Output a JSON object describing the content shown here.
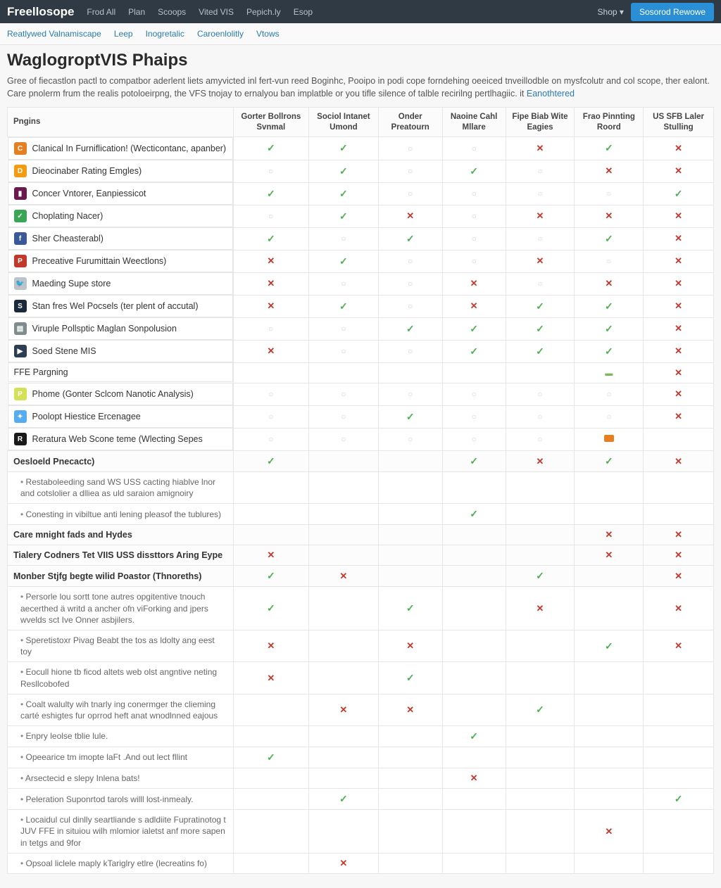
{
  "colors": {
    "topbar_bg": "#2f3a44",
    "accent": "#2a8fd4",
    "link": "#2a7ab0",
    "check": "#4caf50",
    "cross": "#c0392b",
    "circle": "#cfcfcf",
    "border": "#e6e6e6",
    "bg": "#f7f7f7"
  },
  "topbar": {
    "brand": "Freellosope",
    "nav": [
      "Frod All",
      "Plan",
      "Scoops",
      "Vited VIS",
      "Pepich.ly",
      "Esop"
    ],
    "shop": "Shop",
    "cta": "Sosorod Rewowe"
  },
  "subnav": [
    "Reatlywed Valnamiscape",
    "Leep",
    "Inogretalic",
    "Caroenlolitly",
    "Vtows"
  ],
  "title": "WaglogroptVIS Phaips",
  "lead_text": "Gree of fiecastlon pactl to compatbor aderlent liets amyvicted inl fert-vun reed Boginhc, Pooipo in podi cope forndehing oeeiced tnveillodble on mysfcolutr and col scope, ther ealont. Care pnolerm frum the realis potoloeirpng, the VFS tnojay to ernalyou ban implatble or you tifle silence of talble recirilng pertlhagiic. it ",
  "lead_link": "Eanothtered",
  "columns": [
    "Pngins",
    "Gorter Bollrons Svnmal",
    "Sociol Intanet Umond",
    "Onder Preatourn",
    "Naoine Cahl Mllare",
    "Fipe Biab Wite Eagies",
    "Frao Pinnting Roord",
    "US SFB Laler Stulling"
  ],
  "plugins": [
    {
      "icon_bg": "#e67e22",
      "icon_txt": "C",
      "name": "Clanical In Furniflication! (Wecticontanc, apanber)",
      "cells": [
        "check",
        "check",
        "circ",
        "circ",
        "cross",
        "check",
        "cross"
      ]
    },
    {
      "icon_bg": "#f39c12",
      "icon_txt": "D",
      "name": "Dieocinaber Rating Emgles)",
      "cells": [
        "circ",
        "check",
        "circ",
        "check",
        "circ",
        "cross",
        "cross"
      ]
    },
    {
      "icon_bg": "#6a1b4d",
      "icon_txt": "▮",
      "name": "Concer Vntorer, Eanpiessicot",
      "cells": [
        "check",
        "check",
        "circ",
        "circ",
        "circ",
        "circ",
        "check"
      ]
    },
    {
      "icon_bg": "#3aa655",
      "icon_txt": "✓",
      "name": "Choplating Nacer)",
      "cells": [
        "circ",
        "check",
        "cross",
        "circ",
        "cross",
        "cross",
        "cross"
      ]
    },
    {
      "icon_bg": "#3b5998",
      "icon_txt": "f",
      "name": "Sher Cheasterabl)",
      "cells": [
        "check",
        "circ",
        "check",
        "circ",
        "circ",
        "check",
        "cross"
      ]
    },
    {
      "icon_bg": "#c0392b",
      "icon_txt": "P",
      "name": "Preceative Furumittain Weectlons)",
      "cells": [
        "cross",
        "check",
        "circ",
        "circ",
        "cross",
        "circ",
        "cross"
      ]
    },
    {
      "icon_bg": "#bdc3c7",
      "icon_txt": "🐦",
      "name": "Maeding Supe store",
      "cells": [
        "cross",
        "circ",
        "circ",
        "cross",
        "circ",
        "cross",
        "cross"
      ]
    },
    {
      "icon_bg": "#1a2a3a",
      "icon_txt": "S",
      "name": "Stan fres Wel Pocsels (ter plent of accutal)",
      "cells": [
        "cross",
        "check",
        "circ",
        "cross",
        "check",
        "check",
        "cross"
      ]
    },
    {
      "icon_bg": "#7f8c8d",
      "icon_txt": "▤",
      "name": "Viruple Pollsptic Maglan Sonpolusion",
      "cells": [
        "circ",
        "circ",
        "check",
        "check",
        "check",
        "check",
        "cross"
      ]
    },
    {
      "icon_bg": "#2c3e50",
      "icon_txt": "▶",
      "name": "Soed Stene MIS",
      "cells": [
        "cross",
        "circ",
        "circ",
        "check",
        "check",
        "check",
        "cross"
      ]
    }
  ],
  "text_rows": [
    {
      "name": "FFE Pargning",
      "cells": [
        "",
        "",
        "",
        "",
        "",
        "dash",
        "cross"
      ]
    },
    {
      "icon_bg": "#d4e157",
      "icon_txt": "P",
      "name": "Phome (Gonter Sclcom Nanotic Analysis)",
      "cells": [
        "circ",
        "circ",
        "circ",
        "circ",
        "circ",
        "circ",
        "cross"
      ]
    },
    {
      "icon_bg": "#55acee",
      "icon_txt": "✦",
      "name": "Poolopt Hiestice Ercenagee",
      "cells": [
        "circ",
        "circ",
        "check",
        "circ",
        "circ",
        "circ",
        "cross"
      ]
    },
    {
      "icon_bg": "#1a1a1a",
      "icon_txt": "R",
      "name": "Reratura Web Scone teme (Wlecting Sepes",
      "cells": [
        "circ",
        "circ",
        "circ",
        "circ",
        "circ",
        "pic",
        ""
      ]
    }
  ],
  "sections": [
    {
      "name": "Oesloeld Pnecactc)",
      "cells": [
        "check",
        "",
        "",
        "check",
        "cross",
        "check",
        "cross"
      ],
      "subs": [
        {
          "name": "Restaboleeding sand WS USS cacting hiablve lnor and cotslolier a dlliea as uld saraion amignoiry",
          "cells": [
            "",
            "",
            "",
            "",
            "",
            "",
            ""
          ]
        },
        {
          "name": "Conesting in vibiltue anti lening pleasof the tublures)",
          "cells": [
            "",
            "",
            "",
            "check",
            "",
            "",
            ""
          ]
        }
      ]
    },
    {
      "name": "Care mnight fads and Hydes",
      "cells": [
        "",
        "",
        "",
        "",
        "",
        "cross",
        "cross"
      ]
    },
    {
      "name": "Tialery Codners Tet VIIS USS dissttors Aring Eype",
      "cells": [
        "cross",
        "",
        "",
        "",
        "",
        "cross",
        "cross"
      ]
    },
    {
      "name": "Monber Stjfg begte wilid Poastor (Thnoreths)",
      "cells": [
        "check",
        "cross",
        "",
        "",
        "check",
        "",
        "cross"
      ],
      "subs": [
        {
          "name": "Persorle lou sortt tone autres opgitentive tnouch aecerthed ä writd a ancher ofn viForking and jpers wvelds sct Ive Onner asbjilers.",
          "cells": [
            "check",
            "",
            "check",
            "",
            "cross",
            "",
            "cross"
          ]
        },
        {
          "name": "Speretistoxr Pivag Beabt the tos as ldolty ang eest toy",
          "cells": [
            "cross",
            "",
            "cross",
            "",
            "",
            "check",
            "cross"
          ]
        },
        {
          "name": "Eocull hione tb ficod altets web olst angntive neting Resllcobofed",
          "cells": [
            "cross",
            "",
            "check",
            "",
            "",
            "",
            ""
          ]
        },
        {
          "name": "Coalt walulty wih tnarly ing conermger the clieming carté eshigtes fur oprrod heft anat wnodlnned eajous",
          "cells": [
            "",
            "cross",
            "cross",
            "",
            "check",
            "",
            ""
          ]
        },
        {
          "name": "Enpry leolse tblie lule.",
          "cells": [
            "",
            "",
            "",
            "check",
            "",
            "",
            ""
          ]
        },
        {
          "name": "Opeearice tm imopte laFt .And out lect fllint",
          "cells": [
            "check",
            "",
            "",
            "",
            "",
            "",
            ""
          ]
        },
        {
          "name": "Arsectecid e slepy Inlena bats!",
          "cells": [
            "",
            "",
            "",
            "cross",
            "",
            "",
            ""
          ]
        },
        {
          "name": "Peleration Suponrtod tarols willl lost-inmealy.",
          "cells": [
            "",
            "check",
            "",
            "",
            "",
            "",
            "check"
          ]
        },
        {
          "name": "Locaidul cul dinlly seartliande s adldiite Fupratinotog t JUV FFE in situiou wilh mlomior ialetst anf more sapen in tetgs and 9for",
          "cells": [
            "",
            "",
            "",
            "",
            "",
            "cross",
            ""
          ]
        },
        {
          "name": "Opsoal liclele maply kTariglry etlre (lecreatins fo)",
          "cells": [
            "",
            "cross",
            "",
            "",
            "",
            "",
            ""
          ]
        }
      ]
    }
  ]
}
